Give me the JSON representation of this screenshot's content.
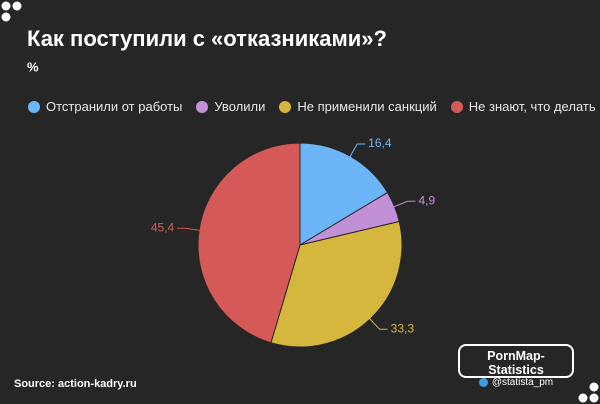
{
  "chart_data": {
    "type": "pie",
    "title": "Как поступили с «отказниками»?",
    "subtitle": "%",
    "categories": [
      "Отстранили от работы",
      "Уволили",
      "Не применили санкций",
      "Не знают, что делать"
    ],
    "values": [
      16.4,
      4.9,
      33.3,
      45.4
    ],
    "value_labels": [
      "16,4",
      "4,9",
      "33,3",
      "45,4"
    ],
    "colors": [
      "#6cb6f7",
      "#c190d6",
      "#d6b73d",
      "#d55a57"
    ],
    "source": "Source: action-kadry.ru"
  },
  "watermark": {
    "title": "PornMap-Statistics",
    "handle": "@statista_pm"
  }
}
